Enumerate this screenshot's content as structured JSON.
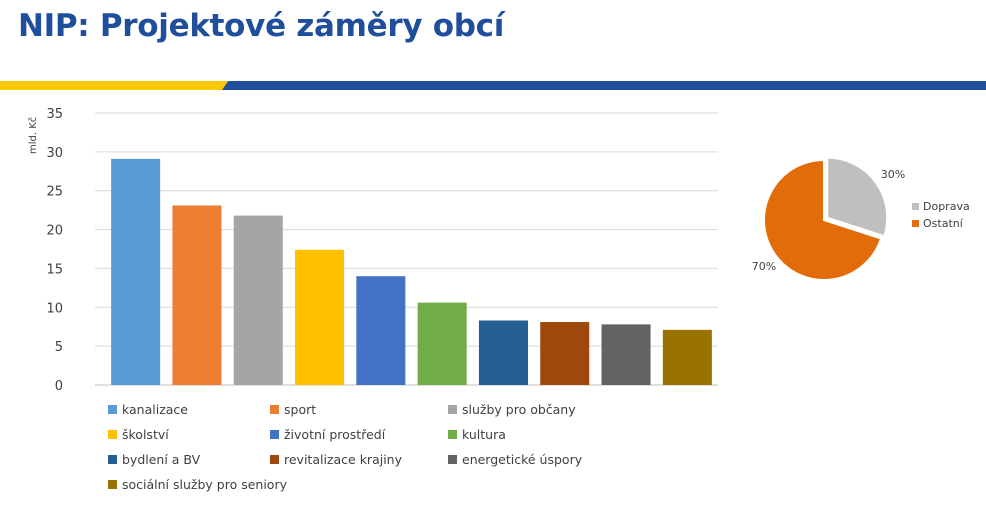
{
  "slide": {
    "title": "NIP: Projektové záměry obcí",
    "colors": {
      "title": "#1f4e9a",
      "stripe_yellow": "#f9c800",
      "stripe_blue": "#1f4e9a"
    }
  },
  "chart_data": [
    {
      "type": "bar",
      "title": "",
      "xlabel": "",
      "ylabel": "mld. Kč",
      "ylim": [
        0,
        35
      ],
      "yticks": [
        0,
        5,
        10,
        15,
        20,
        25,
        30,
        35
      ],
      "grid": true,
      "legend_position": "bottom",
      "categories": [
        "kanalizace",
        "sport",
        "služby pro občany",
        "školství",
        "životní prostředí",
        "kultura",
        "bydlení a BV",
        "revitalizace krajiny",
        "energetické úspory",
        "sociální služby pro seniory"
      ],
      "values": [
        29.1,
        23.1,
        21.8,
        17.4,
        14.0,
        10.6,
        8.3,
        8.1,
        7.8,
        7.1
      ],
      "colors": [
        "#5b9bd5",
        "#ed7d31",
        "#a5a5a5",
        "#ffc000",
        "#4472c4",
        "#70ad47",
        "#255e91",
        "#9e480e",
        "#636363",
        "#997300"
      ]
    },
    {
      "type": "pie",
      "title": "",
      "legend_position": "right",
      "categories": [
        "Doprava",
        "Ostatní"
      ],
      "values": [
        30,
        70
      ],
      "labels": [
        "30%",
        "70%"
      ],
      "colors": [
        "#bfbfbf",
        "#e36c0a"
      ]
    }
  ]
}
